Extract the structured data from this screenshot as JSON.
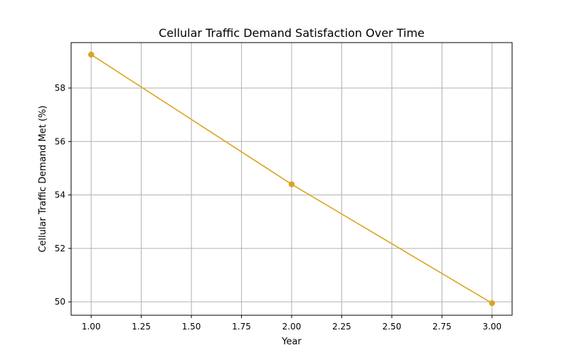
{
  "chart_data": {
    "type": "line",
    "title": "Cellular Traffic Demand Satisfaction Over Time",
    "xlabel": "Year",
    "ylabel": "Cellular Traffic Demand Met (%)",
    "x": [
      1,
      2,
      3
    ],
    "series": [
      {
        "values": [
          59.25,
          54.4,
          49.95
        ],
        "color": "#DAA520",
        "marker": "circle"
      }
    ],
    "xlim": [
      0.9,
      3.1
    ],
    "ylim": [
      49.5,
      59.7
    ],
    "xticks": [
      1.0,
      1.25,
      1.5,
      1.75,
      2.0,
      2.25,
      2.5,
      2.75,
      3.0
    ],
    "xtick_labels": [
      "1.00",
      "1.25",
      "1.50",
      "1.75",
      "2.00",
      "2.25",
      "2.50",
      "2.75",
      "3.00"
    ],
    "yticks": [
      50,
      52,
      54,
      56,
      58
    ],
    "ytick_labels": [
      "50",
      "52",
      "54",
      "56",
      "58"
    ],
    "grid": true,
    "legend": false
  }
}
